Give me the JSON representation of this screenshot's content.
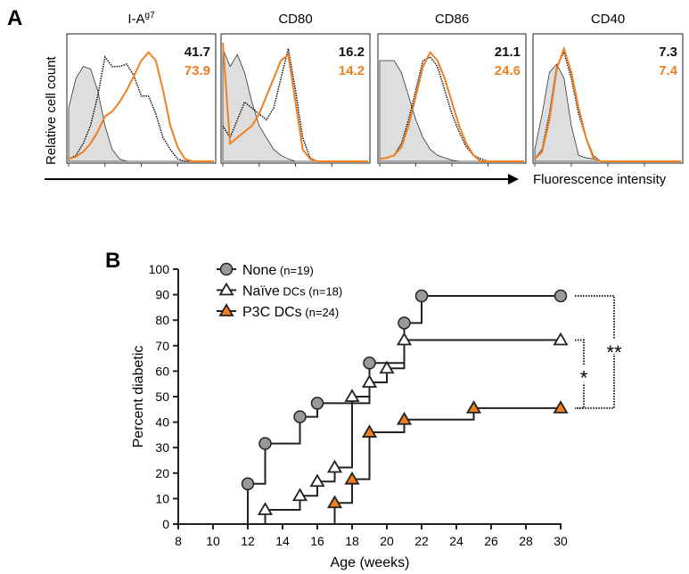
{
  "chart_data": [
    {
      "type": "histogram-overlay",
      "panel_label": "A",
      "ylabel": "Relative cell count",
      "xlabel": "Fluorescence intensity",
      "colors": {
        "naive": "#111111",
        "p3c": "#f07f1f",
        "isotype": "#dedede"
      },
      "panels": [
        {
          "title": "I-A",
          "title_sup": "g7",
          "naive_value": "41.7",
          "p3c_value": "73.9",
          "isotype": [
            0.45,
            0.7,
            0.8,
            0.78,
            0.6,
            0.3,
            0.1,
            0.02,
            0,
            0,
            0,
            0,
            0,
            0,
            0,
            0,
            0,
            0,
            0,
            0,
            0
          ],
          "naive": [
            0.02,
            0.05,
            0.15,
            0.3,
            0.55,
            0.88,
            0.8,
            0.8,
            0.82,
            0.72,
            0.55,
            0.55,
            0.4,
            0.2,
            0.1,
            0.02,
            0,
            0,
            0,
            0,
            0
          ],
          "p3c": [
            0.02,
            0.04,
            0.08,
            0.15,
            0.25,
            0.38,
            0.42,
            0.5,
            0.6,
            0.72,
            0.85,
            0.92,
            0.85,
            0.6,
            0.3,
            0.12,
            0.02,
            0,
            0,
            0,
            0
          ]
        },
        {
          "title": "CD80",
          "naive_value": "16.2",
          "p3c_value": "14.2",
          "isotype": [
            0.95,
            0.8,
            0.9,
            0.75,
            0.5,
            0.3,
            0.2,
            0.1,
            0.05,
            0.02,
            0,
            0,
            0,
            0,
            0,
            0,
            0,
            0,
            0,
            0,
            0
          ],
          "naive": [
            0.3,
            0.2,
            0.35,
            0.5,
            0.45,
            0.4,
            0.35,
            0.45,
            0.7,
            0.95,
            0.6,
            0.2,
            0.03,
            0,
            0,
            0,
            0,
            0,
            0,
            0,
            0
          ],
          "p3c": [
            1,
            0.15,
            0.2,
            0.25,
            0.3,
            0.4,
            0.55,
            0.7,
            0.85,
            0.9,
            0.5,
            0.1,
            0.02,
            0,
            0,
            0,
            0,
            0,
            0,
            0,
            0
          ]
        },
        {
          "title": "CD86",
          "naive_value": "21.1",
          "p3c_value": "24.6",
          "isotype": [
            0.85,
            0.85,
            0.85,
            0.75,
            0.55,
            0.35,
            0.2,
            0.1,
            0.05,
            0.03,
            0.01,
            0,
            0,
            0,
            0,
            0,
            0,
            0,
            0,
            0,
            0
          ],
          "naive": [
            0.02,
            0.03,
            0.05,
            0.15,
            0.35,
            0.6,
            0.85,
            0.88,
            0.8,
            0.6,
            0.4,
            0.25,
            0.12,
            0.05,
            0.02,
            0,
            0,
            0,
            0,
            0,
            0
          ],
          "p3c": [
            0.02,
            0.03,
            0.05,
            0.12,
            0.3,
            0.55,
            0.8,
            0.92,
            0.85,
            0.7,
            0.5,
            0.3,
            0.15,
            0.05,
            0,
            0,
            0,
            0,
            0,
            0,
            0
          ]
        },
        {
          "title": "CD40",
          "naive_value": "7.3",
          "p3c_value": "7.4",
          "isotype": [
            0.1,
            0.4,
            0.75,
            0.82,
            0.7,
            0.3,
            0.05,
            0.03,
            0.02,
            0,
            0,
            0,
            0,
            0,
            0,
            0,
            0,
            0,
            0,
            0,
            0
          ],
          "naive": [
            0.02,
            0.1,
            0.4,
            0.8,
            0.92,
            0.7,
            0.4,
            0.2,
            0.05,
            0,
            0,
            0,
            0,
            0,
            0,
            0,
            0,
            0,
            0,
            0,
            0
          ],
          "p3c": [
            0.02,
            0.08,
            0.35,
            0.78,
            0.95,
            0.75,
            0.45,
            0.2,
            0.03,
            0,
            0,
            0,
            0,
            0,
            0,
            0,
            0,
            0,
            0,
            0,
            0
          ]
        }
      ]
    },
    {
      "type": "line",
      "subtype": "step (Kaplan-Meier style)",
      "panel_label": "B",
      "xlabel": "Age  (weeks)",
      "ylabel": "Percent diabetic",
      "xlim": [
        8,
        30
      ],
      "ylim": [
        0,
        100
      ],
      "xticks": [
        8,
        10,
        12,
        14,
        16,
        18,
        20,
        22,
        24,
        26,
        28,
        30
      ],
      "yticks": [
        0,
        10,
        20,
        30,
        40,
        50,
        60,
        70,
        80,
        90,
        100
      ],
      "legend_position": "top-left",
      "series": [
        {
          "name": "None",
          "n": "(n=19)",
          "marker": "circle",
          "fill": "#999999",
          "x": [
            12,
            13,
            15,
            16,
            19,
            21,
            22,
            30
          ],
          "y": [
            15.8,
            31.6,
            42.1,
            47.4,
            63.2,
            78.9,
            89.5,
            89.5
          ]
        },
        {
          "name": "Naïve",
          "name_suffix": "DCs",
          "n": "(n=18)",
          "marker": "triangle",
          "fill": "#ffffff",
          "x": [
            13,
            15,
            16,
            17,
            18,
            19,
            20,
            21,
            30
          ],
          "y": [
            5.6,
            11.1,
            16.7,
            22.2,
            50,
            55.6,
            61.1,
            72.2,
            72.2
          ]
        },
        {
          "name": "P3C DCs",
          "n": "(n=24)",
          "marker": "triangle",
          "fill": "#f07f1f",
          "x": [
            17,
            18,
            19,
            21,
            25,
            30
          ],
          "y": [
            8.3,
            17.6,
            36,
            41,
            45.5,
            45.5
          ]
        }
      ],
      "annotations": [
        {
          "text": "*",
          "between": [
            "Naïve DCs",
            "P3C DCs"
          ]
        },
        {
          "text": "**",
          "between": [
            "None",
            "P3C DCs"
          ]
        }
      ]
    }
  ]
}
